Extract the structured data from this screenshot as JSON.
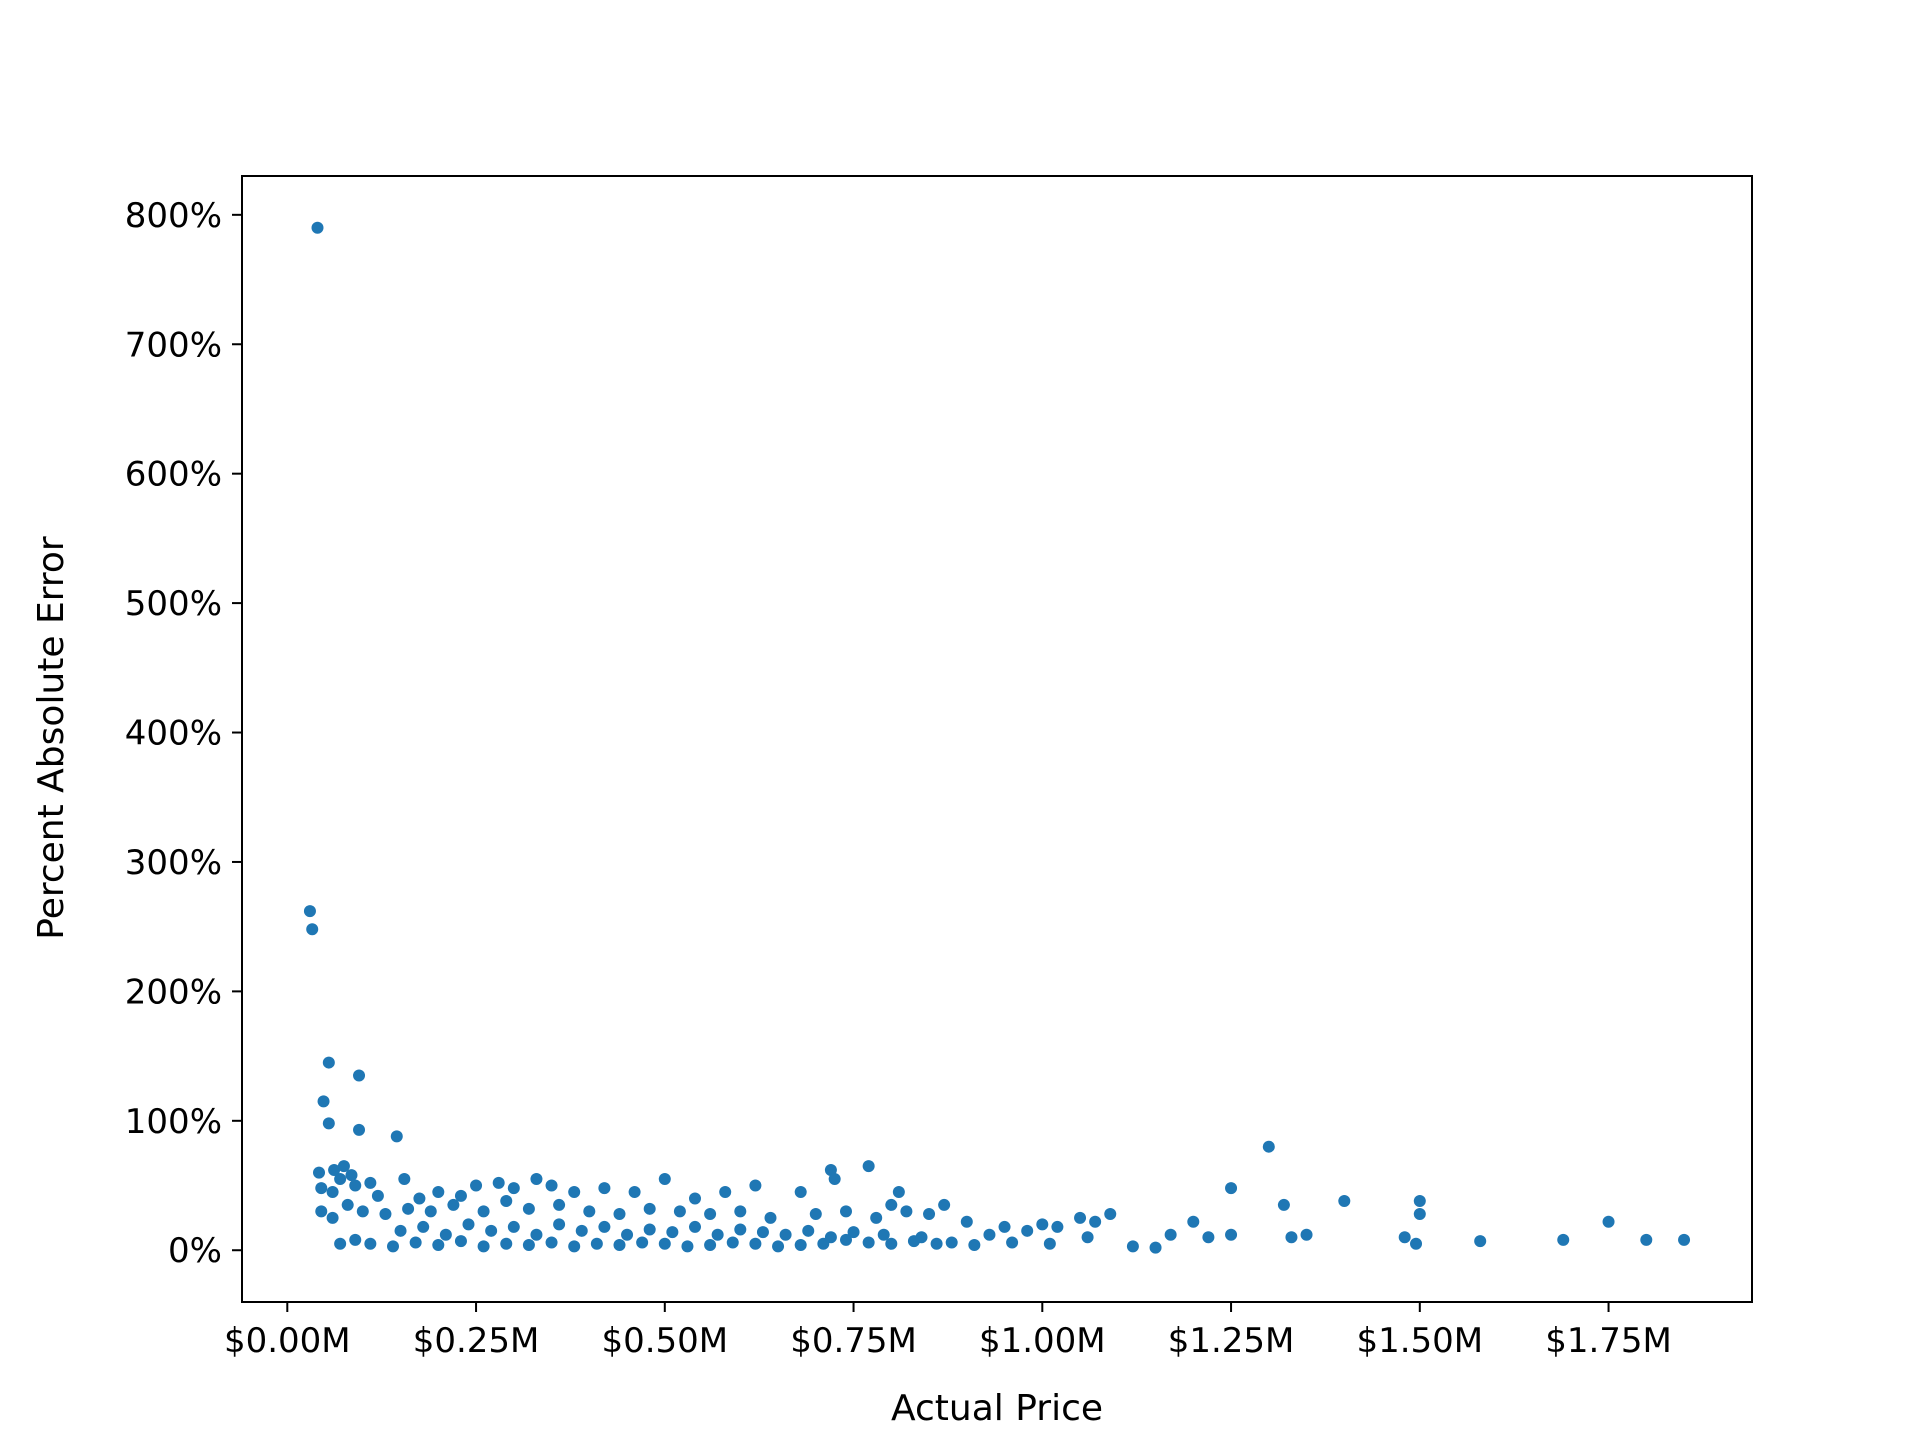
{
  "chart_data": {
    "type": "scatter",
    "title": "",
    "xlabel": "Actual Price",
    "ylabel": "Percent Absolute Error",
    "xlim": [
      -60000,
      1940000
    ],
    "ylim": [
      -40,
      830
    ],
    "xticks": [
      0,
      250000,
      500000,
      750000,
      1000000,
      1250000,
      1500000,
      1750000
    ],
    "xtick_labels": [
      "$0.00M",
      "$0.25M",
      "$0.50M",
      "$0.75M",
      "$1.00M",
      "$1.25M",
      "$1.50M",
      "$1.75M"
    ],
    "yticks": [
      0,
      100,
      200,
      300,
      400,
      500,
      600,
      700,
      800
    ],
    "ytick_labels": [
      "0%",
      "100%",
      "200%",
      "300%",
      "400%",
      "500%",
      "600%",
      "700%",
      "800%"
    ],
    "grid": false,
    "legend": "none",
    "marker_color": "#1f77b4",
    "series": [
      {
        "points": [
          [
            40000,
            790
          ],
          [
            30000,
            262
          ],
          [
            33000,
            248
          ],
          [
            55000,
            145
          ],
          [
            95000,
            135
          ],
          [
            48000,
            115
          ],
          [
            55000,
            98
          ],
          [
            95000,
            93
          ],
          [
            145000,
            88
          ],
          [
            62000,
            62
          ],
          [
            75000,
            65
          ],
          [
            42000,
            60
          ],
          [
            70000,
            55
          ],
          [
            85000,
            58
          ],
          [
            110000,
            52
          ],
          [
            155000,
            55
          ],
          [
            45000,
            48
          ],
          [
            60000,
            45
          ],
          [
            90000,
            50
          ],
          [
            120000,
            42
          ],
          [
            175000,
            40
          ],
          [
            200000,
            45
          ],
          [
            230000,
            42
          ],
          [
            250000,
            50
          ],
          [
            280000,
            52
          ],
          [
            300000,
            48
          ],
          [
            330000,
            55
          ],
          [
            350000,
            50
          ],
          [
            380000,
            45
          ],
          [
            420000,
            48
          ],
          [
            460000,
            45
          ],
          [
            500000,
            55
          ],
          [
            540000,
            40
          ],
          [
            580000,
            45
          ],
          [
            620000,
            50
          ],
          [
            680000,
            45
          ],
          [
            720000,
            62
          ],
          [
            725000,
            55
          ],
          [
            770000,
            65
          ],
          [
            810000,
            45
          ],
          [
            1300000,
            80
          ],
          [
            1250000,
            48
          ],
          [
            1400000,
            38
          ],
          [
            1500000,
            38
          ],
          [
            1500000,
            28
          ],
          [
            1320000,
            35
          ],
          [
            1750000,
            22
          ],
          [
            45000,
            30
          ],
          [
            60000,
            25
          ],
          [
            80000,
            35
          ],
          [
            100000,
            30
          ],
          [
            130000,
            28
          ],
          [
            160000,
            32
          ],
          [
            190000,
            30
          ],
          [
            220000,
            35
          ],
          [
            260000,
            30
          ],
          [
            290000,
            38
          ],
          [
            320000,
            32
          ],
          [
            360000,
            35
          ],
          [
            400000,
            30
          ],
          [
            440000,
            28
          ],
          [
            480000,
            32
          ],
          [
            520000,
            30
          ],
          [
            560000,
            28
          ],
          [
            600000,
            30
          ],
          [
            640000,
            25
          ],
          [
            700000,
            28
          ],
          [
            740000,
            30
          ],
          [
            780000,
            25
          ],
          [
            800000,
            35
          ],
          [
            820000,
            30
          ],
          [
            850000,
            28
          ],
          [
            870000,
            35
          ],
          [
            900000,
            22
          ],
          [
            950000,
            18
          ],
          [
            1000000,
            20
          ],
          [
            1050000,
            25
          ],
          [
            1070000,
            22
          ],
          [
            1090000,
            28
          ],
          [
            1200000,
            22
          ],
          [
            1250000,
            12
          ],
          [
            1330000,
            10
          ],
          [
            1350000,
            12
          ],
          [
            1480000,
            10
          ],
          [
            1495000,
            5
          ],
          [
            1580000,
            7
          ],
          [
            1690000,
            8
          ],
          [
            1800000,
            8
          ],
          [
            1850000,
            8
          ],
          [
            1150000,
            2
          ],
          [
            1120000,
            3
          ],
          [
            1170000,
            12
          ],
          [
            1220000,
            10
          ],
          [
            1020000,
            18
          ],
          [
            980000,
            15
          ],
          [
            930000,
            12
          ],
          [
            70000,
            5
          ],
          [
            90000,
            8
          ],
          [
            110000,
            5
          ],
          [
            140000,
            3
          ],
          [
            170000,
            6
          ],
          [
            200000,
            4
          ],
          [
            230000,
            7
          ],
          [
            260000,
            3
          ],
          [
            290000,
            5
          ],
          [
            320000,
            4
          ],
          [
            350000,
            6
          ],
          [
            380000,
            3
          ],
          [
            410000,
            5
          ],
          [
            440000,
            4
          ],
          [
            470000,
            6
          ],
          [
            500000,
            5
          ],
          [
            530000,
            3
          ],
          [
            560000,
            4
          ],
          [
            590000,
            6
          ],
          [
            620000,
            5
          ],
          [
            650000,
            3
          ],
          [
            680000,
            4
          ],
          [
            710000,
            5
          ],
          [
            740000,
            8
          ],
          [
            770000,
            6
          ],
          [
            800000,
            5
          ],
          [
            830000,
            7
          ],
          [
            860000,
            5
          ],
          [
            880000,
            6
          ],
          [
            910000,
            4
          ],
          [
            960000,
            6
          ],
          [
            1010000,
            5
          ],
          [
            150000,
            15
          ],
          [
            180000,
            18
          ],
          [
            210000,
            12
          ],
          [
            240000,
            20
          ],
          [
            270000,
            15
          ],
          [
            300000,
            18
          ],
          [
            330000,
            12
          ],
          [
            360000,
            20
          ],
          [
            390000,
            15
          ],
          [
            420000,
            18
          ],
          [
            450000,
            12
          ],
          [
            480000,
            16
          ],
          [
            510000,
            14
          ],
          [
            540000,
            18
          ],
          [
            570000,
            12
          ],
          [
            600000,
            16
          ],
          [
            630000,
            14
          ],
          [
            660000,
            12
          ],
          [
            690000,
            15
          ],
          [
            720000,
            10
          ],
          [
            750000,
            14
          ],
          [
            790000,
            12
          ],
          [
            840000,
            10
          ],
          [
            1060000,
            10
          ]
        ]
      }
    ]
  }
}
